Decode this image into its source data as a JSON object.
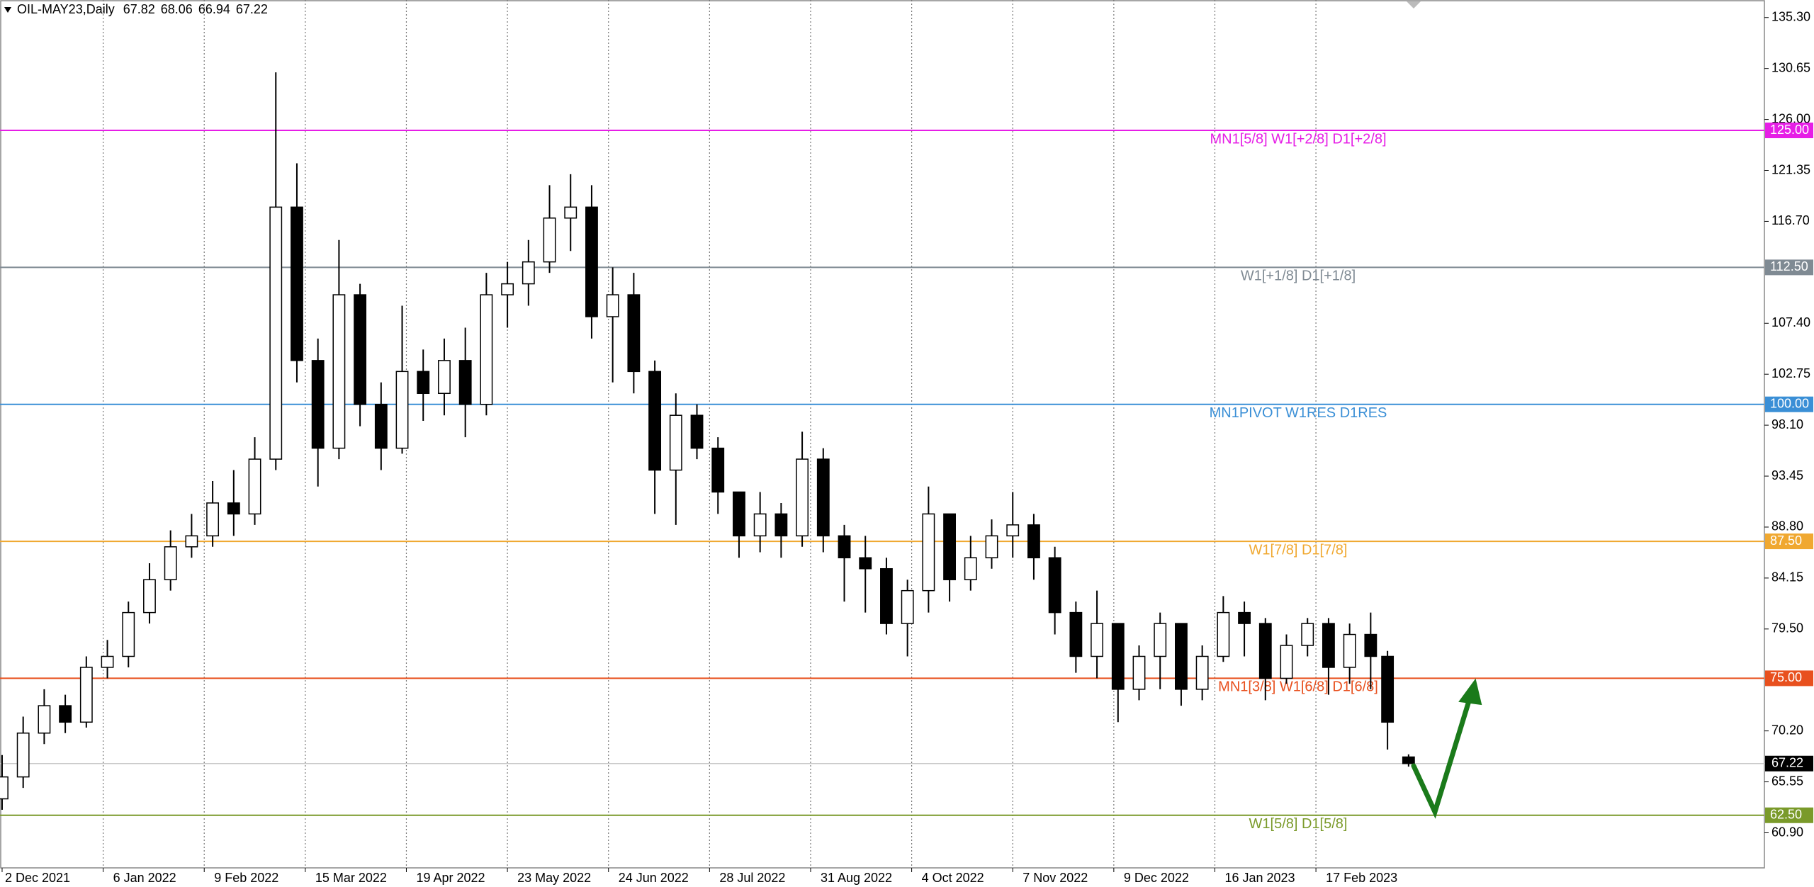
{
  "chart_data": {
    "type": "candlestick",
    "title": "OIL-MAY23,Daily",
    "x": [
      0,
      5,
      10,
      15,
      20,
      25,
      30,
      35,
      40,
      45,
      50,
      55,
      60,
      65,
      70,
      75,
      80,
      85,
      90,
      95,
      100,
      105,
      110,
      115,
      120,
      125,
      130,
      135,
      140,
      145,
      150,
      155,
      160,
      165,
      170,
      175,
      180,
      185,
      190,
      195,
      200,
      205,
      210,
      215,
      220,
      225,
      230,
      235,
      240,
      245,
      250,
      255,
      260,
      265,
      270,
      275,
      280,
      285,
      290,
      295,
      300,
      305,
      310,
      315,
      320,
      325,
      329,
      334
    ],
    "open": [
      64,
      66,
      70,
      72.5,
      71,
      76,
      77,
      81,
      84,
      87,
      88,
      91,
      90,
      95,
      118,
      104,
      96,
      110,
      100,
      96,
      103,
      101,
      104,
      100,
      110,
      111,
      113,
      117,
      118,
      108,
      110,
      103,
      94,
      99,
      96,
      92,
      88,
      90,
      88,
      95,
      88,
      86,
      85,
      80,
      83,
      90,
      84,
      86,
      88,
      89,
      86,
      81,
      77,
      80,
      74,
      77,
      80,
      74,
      77,
      81,
      80,
      75,
      78,
      80,
      76,
      79,
      77,
      67.82
    ],
    "high": [
      68,
      71.5,
      74,
      73.5,
      77,
      78.5,
      82,
      85.5,
      88.5,
      90,
      93,
      94,
      97,
      130.3,
      122,
      106,
      115,
      111,
      102,
      109,
      105,
      106,
      107,
      112,
      113,
      115,
      120,
      121,
      120,
      112.5,
      112,
      104,
      101,
      100,
      97,
      92,
      92,
      91,
      97.5,
      96,
      89,
      88,
      86,
      84,
      92.5,
      90,
      88,
      89.5,
      92,
      90,
      87,
      82,
      83,
      80,
      78,
      81,
      80,
      78,
      82.5,
      82,
      80.5,
      79,
      80.5,
      80.5,
      80,
      81,
      77.5,
      68.06
    ],
    "low": [
      63,
      65,
      69,
      70,
      70.5,
      75,
      76,
      80,
      83,
      86,
      87,
      88,
      89,
      94,
      102,
      92.5,
      95,
      98,
      94,
      95.5,
      98.5,
      99,
      97,
      99,
      107,
      109,
      112,
      114,
      106,
      102,
      101,
      90,
      89,
      95,
      90,
      86,
      86.5,
      86,
      87,
      86.5,
      82,
      81,
      79,
      77,
      81,
      82,
      83,
      85,
      86,
      84,
      79,
      75.5,
      75,
      71,
      73,
      74,
      72.5,
      73,
      76.5,
      77,
      73,
      74.5,
      77,
      73.5,
      74.5,
      74,
      68.5,
      66.94
    ],
    "close": [
      66,
      70,
      72.5,
      71,
      76,
      77,
      81,
      84,
      87,
      88,
      91,
      90,
      95,
      118,
      104,
      96,
      110,
      100,
      96,
      103,
      101,
      104,
      100,
      110,
      111,
      113,
      117,
      118,
      108,
      110,
      103,
      94,
      99,
      96,
      92,
      88,
      90,
      88,
      95,
      88,
      86,
      85,
      80,
      83,
      90,
      84,
      86,
      88,
      89,
      86,
      81,
      77,
      80,
      74,
      77,
      80,
      74,
      77,
      81,
      80,
      75,
      78,
      80,
      76,
      79,
      77,
      71,
      67.22
    ],
    "up_color": "#ffffff",
    "down_color": "#000000",
    "xlim": [
      -0.5,
      418.5
    ],
    "xticks": [
      {
        "value": 0,
        "label": "2 Dec 2021"
      },
      {
        "value": 24,
        "label": "6 Jan 2022"
      },
      {
        "value": 48,
        "label": "9 Feb 2022"
      },
      {
        "value": 72,
        "label": "15 Mar 2022"
      },
      {
        "value": 96,
        "label": "19 Apr 2022"
      },
      {
        "value": 120,
        "label": "23 May 2022"
      },
      {
        "value": 144,
        "label": "24 Jun 2022"
      },
      {
        "value": 168,
        "label": "28 Jul 2022"
      },
      {
        "value": 192,
        "label": "31 Aug 2022"
      },
      {
        "value": 216,
        "label": "4 Oct 2022"
      },
      {
        "value": 240,
        "label": "7 Nov 2022"
      },
      {
        "value": 264,
        "label": "9 Dec 2022"
      },
      {
        "value": 288,
        "label": "16 Jan 2023"
      },
      {
        "value": 312,
        "label": "17 Feb 2023"
      }
    ],
    "ylim": [
      57.7,
      136.9
    ],
    "yticks": [
      {
        "value": 135.3,
        "label": "135.30"
      },
      {
        "value": 130.65,
        "label": "130.65"
      },
      {
        "value": 126,
        "label": "126.00"
      },
      {
        "value": 121.35,
        "label": "121.35"
      },
      {
        "value": 116.7,
        "label": "116.70"
      },
      {
        "value": 107.4,
        "label": "107.40"
      },
      {
        "value": 102.75,
        "label": "102.75"
      },
      {
        "value": 98.1,
        "label": "98.10"
      },
      {
        "value": 93.45,
        "label": "93.45"
      },
      {
        "value": 88.8,
        "label": "88.80"
      },
      {
        "value": 84.15,
        "label": "84.15"
      },
      {
        "value": 79.5,
        "label": "79.50"
      },
      {
        "value": 70.2,
        "label": "70.20"
      },
      {
        "value": 65.55,
        "label": "65.55"
      },
      {
        "value": 60.9,
        "label": "60.90"
      }
    ],
    "grid": true,
    "levels": {
      "values": [
        125,
        112.5,
        100,
        87.5,
        75,
        62.5
      ],
      "value_labels": [
        "125.00",
        "112.50",
        "100.00",
        "87.50",
        "75.00",
        "62.50"
      ],
      "texts": [
        "MN1[5/8] W1[+2/8] D1[+2/8]",
        "W1[+1/8] D1[+1/8]",
        "MN1PIVOT W1RES D1RES",
        "W1[7/8] D1[7/8]",
        "MN1[3/8] W1[6/8] D1[6/8]",
        "W1[5/8] D1[5/8]"
      ],
      "colors": [
        "#e61ee6",
        "#7f8a93",
        "#3a8fd6",
        "#f0a830",
        "#e8501e",
        "#7a9a2a"
      ]
    }
  }
}
